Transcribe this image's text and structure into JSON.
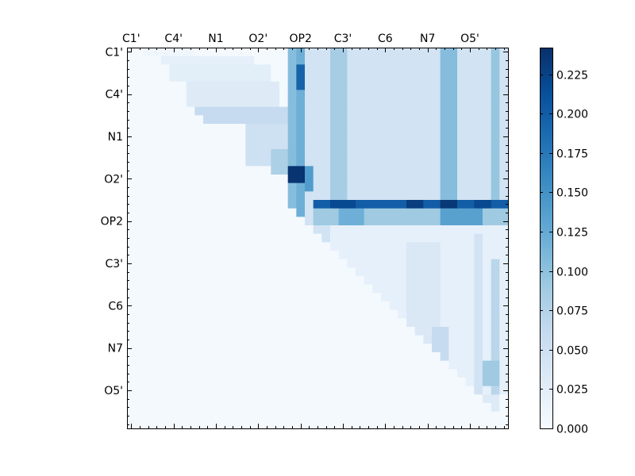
{
  "chart_data": {
    "type": "heatmap",
    "colormap": "Blues",
    "grid_size": 45,
    "xtick_labels": [
      "C1'",
      "C4'",
      "N1",
      "O2'",
      "OP2",
      "C3'",
      "C6",
      "N7",
      "O5'"
    ],
    "ytick_labels": [
      "C1'",
      "C4'",
      "N1",
      "O2'",
      "OP2",
      "C3'",
      "C6",
      "N7",
      "O5'"
    ],
    "tick_every": 5,
    "colorbar": {
      "vmin": 0.0,
      "vmax": 0.242,
      "ticks": [
        0.0,
        0.025,
        0.05,
        0.075,
        0.1,
        0.125,
        0.15,
        0.175,
        0.2,
        0.225
      ],
      "tick_labels": [
        "0.000",
        "0.025",
        "0.050",
        "0.075",
        "0.100",
        "0.125",
        "0.150",
        "0.175",
        "0.200",
        "0.225"
      ]
    },
    "regions": [
      {
        "rows": [
          0,
          44
        ],
        "cols": [
          0,
          44
        ],
        "value": 0.004
      },
      {
        "rows": [
          0,
          24
        ],
        "cols": [
          19,
          44
        ],
        "value": 0.045
      },
      {
        "rows": [
          0,
          24
        ],
        "cols": [
          20,
          20
        ],
        "value": 0.12
      },
      {
        "rows": [
          2,
          4
        ],
        "cols": [
          20,
          20
        ],
        "value": 0.195
      },
      {
        "rows": [
          0,
          23
        ],
        "cols": [
          19,
          19
        ],
        "value": 0.105
      },
      {
        "rows": [
          0,
          24
        ],
        "cols": [
          24,
          25
        ],
        "value": 0.085
      },
      {
        "rows": [
          0,
          24
        ],
        "cols": [
          37,
          38
        ],
        "value": 0.105
      },
      {
        "rows": [
          0,
          24
        ],
        "cols": [
          43,
          43
        ],
        "value": 0.095
      },
      {
        "rows": [
          14,
          15
        ],
        "cols": [
          19,
          20
        ],
        "value": 0.238
      },
      {
        "rows": [
          14,
          16
        ],
        "cols": [
          21,
          21
        ],
        "value": 0.14
      },
      {
        "rows": [
          18,
          18
        ],
        "cols": [
          22,
          44
        ],
        "value": 0.2
      },
      {
        "rows": [
          18,
          18
        ],
        "cols": [
          24,
          26
        ],
        "value": 0.218
      },
      {
        "rows": [
          18,
          18
        ],
        "cols": [
          33,
          34
        ],
        "value": 0.23
      },
      {
        "rows": [
          18,
          18
        ],
        "cols": [
          37,
          38
        ],
        "value": 0.235
      },
      {
        "rows": [
          18,
          18
        ],
        "cols": [
          41,
          42
        ],
        "value": 0.22
      },
      {
        "rows": [
          19,
          20
        ],
        "cols": [
          22,
          44
        ],
        "value": 0.09
      },
      {
        "rows": [
          19,
          20
        ],
        "cols": [
          25,
          27
        ],
        "value": 0.12
      },
      {
        "rows": [
          19,
          20
        ],
        "cols": [
          37,
          41
        ],
        "value": 0.135
      },
      {
        "rows": [
          0,
          0
        ],
        "cols": [
          2,
          7
        ],
        "value": 0.01
      },
      {
        "rows": [
          1,
          1
        ],
        "cols": [
          4,
          14
        ],
        "value": 0.02
      },
      {
        "rows": [
          2,
          3
        ],
        "cols": [
          5,
          16
        ],
        "value": 0.025
      },
      {
        "rows": [
          4,
          6
        ],
        "cols": [
          7,
          17
        ],
        "value": 0.03
      },
      {
        "rows": [
          7,
          8
        ],
        "cols": [
          8,
          18
        ],
        "value": 0.06
      },
      {
        "rows": [
          9,
          13
        ],
        "cols": [
          14,
          18
        ],
        "value": 0.05
      },
      {
        "rows": [
          12,
          14
        ],
        "cols": [
          17,
          18
        ],
        "value": 0.08
      },
      {
        "rows": [
          21,
          40
        ],
        "cols": [
          24,
          44
        ],
        "value": 0.02
      },
      {
        "rows": [
          23,
          34
        ],
        "cols": [
          33,
          36
        ],
        "value": 0.035
      },
      {
        "rows": [
          22,
          41
        ],
        "cols": [
          41,
          41
        ],
        "value": 0.045
      },
      {
        "rows": [
          25,
          40
        ],
        "cols": [
          43,
          43
        ],
        "value": 0.07
      },
      {
        "rows": [
          33,
          36
        ],
        "cols": [
          36,
          37
        ],
        "value": 0.06
      },
      {
        "rows": [
          37,
          39
        ],
        "cols": [
          42,
          43
        ],
        "value": 0.09
      },
      {
        "rows": [
          41,
          42
        ],
        "cols": [
          41,
          43
        ],
        "value": 0.03
      }
    ],
    "lower_triangle_value": 0.004
  }
}
